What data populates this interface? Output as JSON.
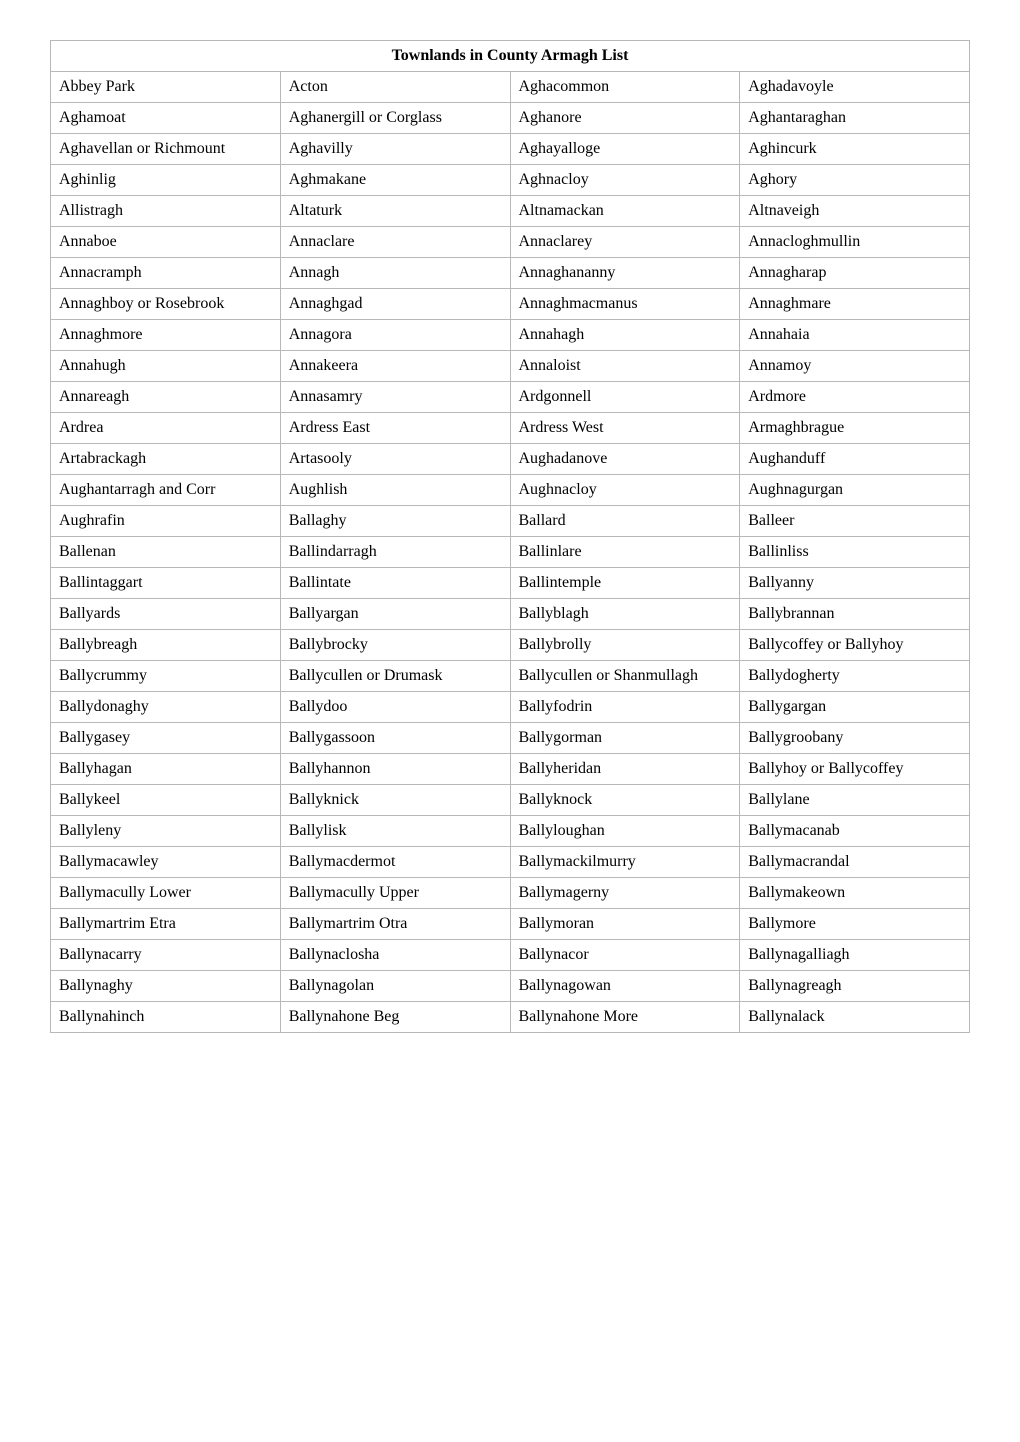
{
  "table": {
    "title": "Townlands in County Armagh List",
    "title_fontsize": 16,
    "title_weight": "bold",
    "cell_fontsize": 16,
    "border_color": "#b8b8b8",
    "background_color": "#ffffff",
    "text_color": "#000000",
    "font_family": "Times New Roman",
    "columns": 4,
    "column_widths": [
      "25%",
      "25%",
      "25%",
      "25%"
    ],
    "rows": [
      [
        "Abbey Park",
        "Acton",
        "Aghacommon",
        "Aghadavoyle"
      ],
      [
        "Aghamoat",
        "Aghanergill or Corglass",
        "Aghanore",
        "Aghantaraghan"
      ],
      [
        "Aghavellan or Richmount",
        "Aghavilly",
        "Aghayalloge",
        "Aghincurk"
      ],
      [
        "Aghinlig",
        "Aghmakane",
        "Aghnacloy",
        "Aghory"
      ],
      [
        "Allistragh",
        "Altaturk",
        "Altnamackan",
        "Altnaveigh"
      ],
      [
        "Annaboe",
        "Annaclare",
        "Annaclarey",
        "Annacloghmullin"
      ],
      [
        "Annacramph",
        "Annagh",
        "Annaghananny",
        "Annagharap"
      ],
      [
        "Annaghboy or Rosebrook",
        "Annaghgad",
        "Annaghmacmanus",
        "Annaghmare"
      ],
      [
        "Annaghmore",
        "Annagora",
        "Annahagh",
        "Annahaia"
      ],
      [
        "Annahugh",
        "Annakeera",
        "Annaloist",
        "Annamoy"
      ],
      [
        "Annareagh",
        "Annasamry",
        "Ardgonnell",
        "Ardmore"
      ],
      [
        "Ardrea",
        "Ardress East",
        "Ardress West",
        "Armaghbrague"
      ],
      [
        "Artabrackagh",
        "Artasooly",
        "Aughadanove",
        "Aughanduff"
      ],
      [
        "Aughantarragh and Corr",
        "Aughlish",
        "Aughnacloy",
        "Aughnagurgan"
      ],
      [
        "Aughrafin",
        "Ballaghy",
        "Ballard",
        "Balleer"
      ],
      [
        "Ballenan",
        "Ballindarragh",
        "Ballinlare",
        "Ballinliss"
      ],
      [
        "Ballintaggart",
        "Ballintate",
        "Ballintemple",
        "Ballyanny"
      ],
      [
        "Ballyards",
        "Ballyargan",
        "Ballyblagh",
        "Ballybrannan"
      ],
      [
        "Ballybreagh",
        "Ballybrocky",
        "Ballybrolly",
        "Ballycoffey or Ballyhoy"
      ],
      [
        "Ballycrummy",
        "Ballycullen or Drumask",
        "Ballycullen or Shanmullagh",
        "Ballydogherty"
      ],
      [
        "Ballydonaghy",
        "Ballydoo",
        "Ballyfodrin",
        "Ballygargan"
      ],
      [
        "Ballygasey",
        "Ballygassoon",
        "Ballygorman",
        "Ballygroobany"
      ],
      [
        "Ballyhagan",
        "Ballyhannon",
        "Ballyheridan",
        "Ballyhoy or Ballycoffey"
      ],
      [
        "Ballykeel",
        "Ballyknick",
        "Ballyknock",
        "Ballylane"
      ],
      [
        "Ballyleny",
        "Ballylisk",
        "Ballyloughan",
        "Ballymacanab"
      ],
      [
        "Ballymacawley",
        "Ballymacdermot",
        "Ballymackilmurry",
        "Ballymacrandal"
      ],
      [
        "Ballymacully Lower",
        "Ballymacully Upper",
        "Ballymagerny",
        "Ballymakeown"
      ],
      [
        "Ballymartrim Etra",
        "Ballymartrim Otra",
        "Ballymoran",
        "Ballymore"
      ],
      [
        "Ballynacarry",
        "Ballynaclosha",
        "Ballynacor",
        "Ballynagalliagh"
      ],
      [
        "Ballynaghy",
        "Ballynagolan",
        "Ballynagowan",
        "Ballynagreagh"
      ],
      [
        "Ballynahinch",
        "Ballynahone Beg",
        "Ballynahone More",
        "Ballynalack"
      ]
    ]
  }
}
